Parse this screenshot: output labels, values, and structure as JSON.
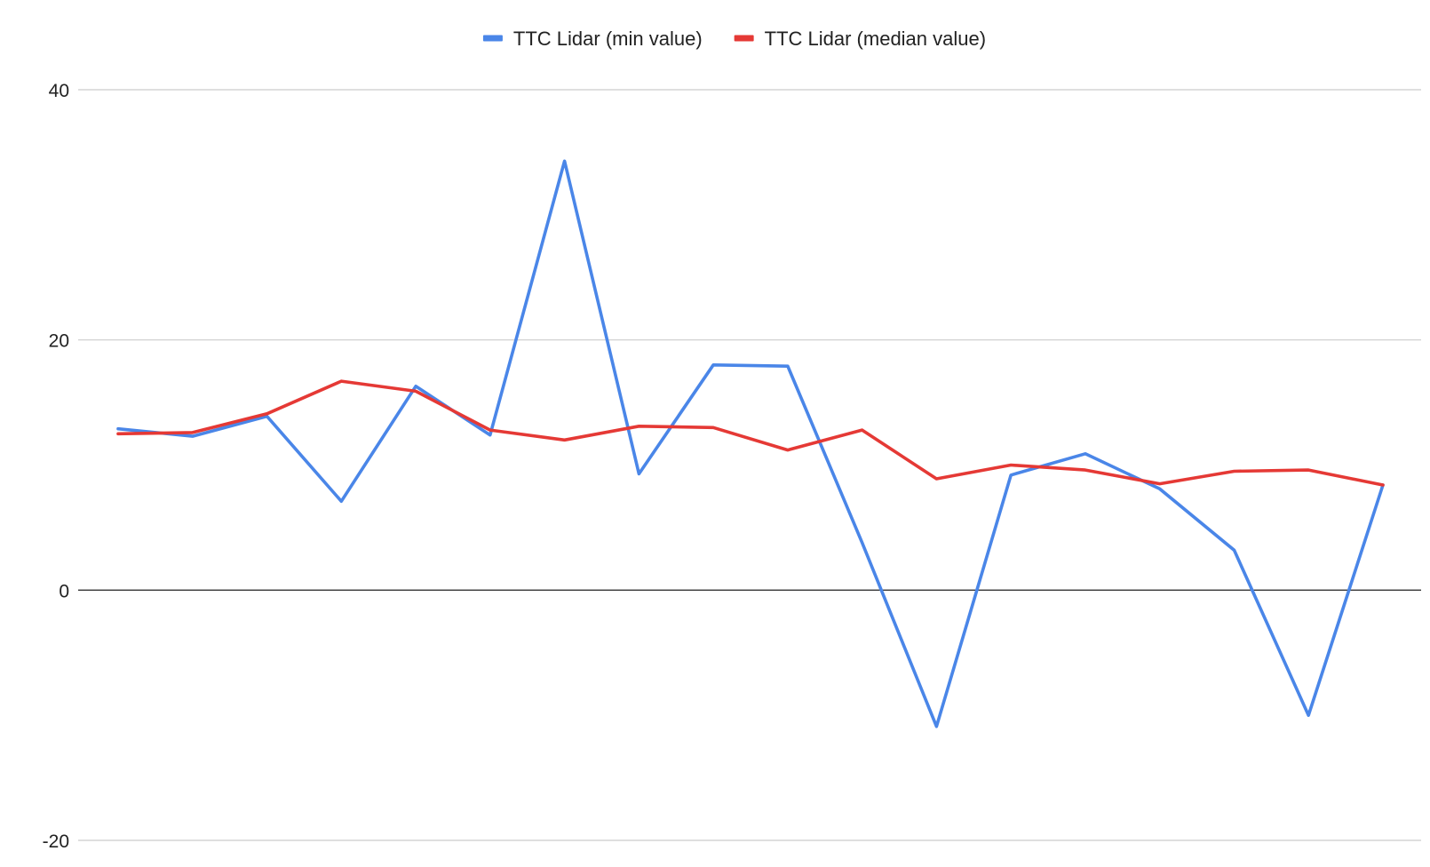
{
  "chart_data": {
    "type": "line",
    "title": "",
    "xlabel": "",
    "ylabel": "",
    "ylim": [
      -20,
      40
    ],
    "y_ticks": [
      40,
      20,
      0,
      -20
    ],
    "grid": true,
    "legend_position": "top-center",
    "x": [
      1,
      2,
      3,
      4,
      5,
      6,
      7,
      8,
      9,
      10,
      11,
      12,
      13,
      14,
      15,
      16,
      17,
      18
    ],
    "series": [
      {
        "name": "TTC Lidar (min value)",
        "color": "#4a86e8",
        "values": [
          12.9,
          12.3,
          13.9,
          7.1,
          16.3,
          12.4,
          34.3,
          9.3,
          18.0,
          17.9,
          3.8,
          -10.9,
          9.2,
          10.9,
          8.1,
          3.2,
          -10.0,
          8.4
        ]
      },
      {
        "name": "TTC Lidar (median value)",
        "color": "#e53935",
        "values": [
          12.5,
          12.6,
          14.1,
          16.7,
          15.9,
          12.8,
          12.0,
          13.1,
          13.0,
          11.2,
          12.8,
          8.9,
          10.0,
          9.6,
          8.5,
          9.5,
          9.6,
          8.4
        ]
      }
    ]
  }
}
